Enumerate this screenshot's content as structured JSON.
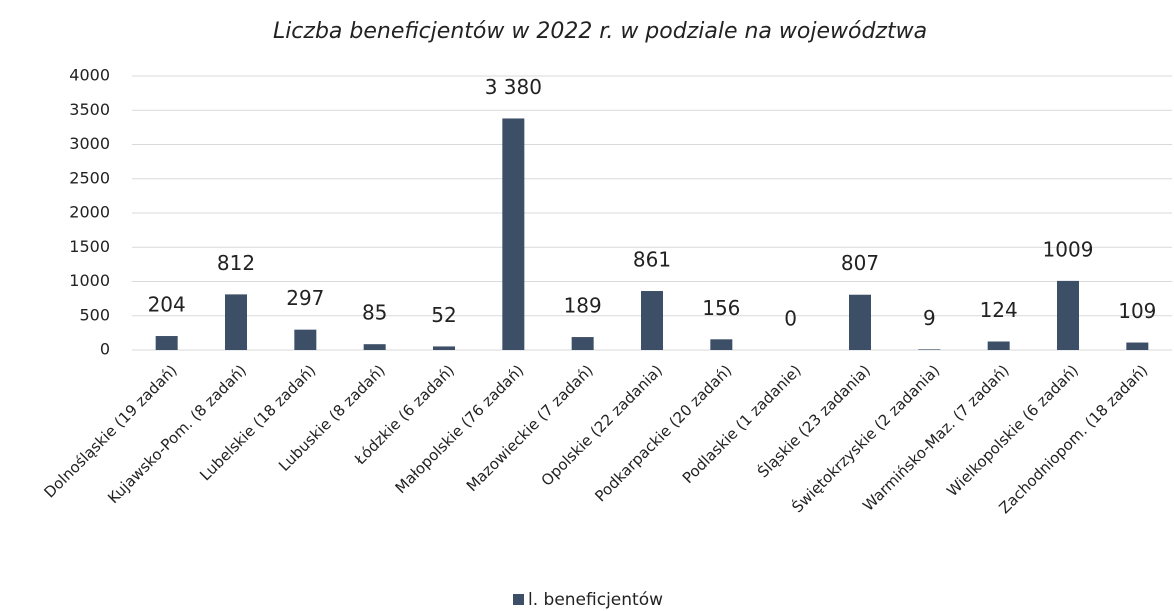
{
  "chart_data": {
    "type": "bar",
    "title": "Liczba beneficjentów w 2022 r. w podziale na województwa",
    "categories": [
      "Dolnośląskie (19 zadań)",
      "Kujawsko-Pom. (8 zadań)",
      "Lubelskie (18 zadań)",
      "Lubuskie (8 zadań)",
      "Łódzkie (6 zadań)",
      "Małopolskie (76 zadań)",
      "Mazowieckie (7 zadań)",
      "Opolskie (22 zadania)",
      "Podkarpackie (20 zadań)",
      "Podlaskie (1 zadanie)",
      "Śląskie (23 zadania)",
      "Świętokrzyskie (2 zadania)",
      "Warmińsko-Maz. (7 zadań)",
      "Wielkopolskie (6 zadań)",
      "Zachodniopom. (18 zadań)"
    ],
    "series": [
      {
        "name": "l. beneficjentów",
        "color": "#3d4f66",
        "values": [
          204,
          812,
          297,
          85,
          52,
          3380,
          189,
          861,
          156,
          0,
          807,
          9,
          124,
          1009,
          109
        ]
      }
    ],
    "value_labels": [
      "204",
      "812",
      "297",
      "85",
      "52",
      "3 380",
      "189",
      "861",
      "156",
      "0",
      "807",
      "9",
      "124",
      "1009",
      "109"
    ],
    "ylim": [
      0,
      4000
    ],
    "yticks": [
      0,
      500,
      1000,
      1500,
      2000,
      2500,
      3000,
      3500,
      4000
    ],
    "grid": true,
    "legend": "bottom"
  }
}
